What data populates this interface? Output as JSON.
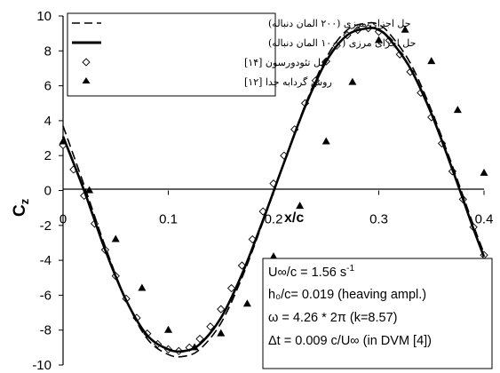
{
  "chart_data": {
    "type": "line",
    "xlabel": "x/c",
    "ylabel": "C",
    "ylabel_sub": "z",
    "xlim": [
      0,
      0.4
    ],
    "ylim": [
      -10,
      10
    ],
    "x_ticks": [
      0,
      0.1,
      0.2,
      0.3,
      0.4
    ],
    "x_tick_labels": [
      "0",
      "0.1",
      "0.2",
      "0.3",
      "0.4"
    ],
    "y_ticks": [
      -10,
      -8,
      -6,
      -4,
      -2,
      0,
      2,
      4,
      6,
      8,
      10
    ],
    "y_tick_labels": [
      "-10",
      "-8",
      "-6",
      "-4",
      "-2",
      "0",
      "2",
      "4",
      "6",
      "8",
      "10"
    ],
    "grid": false,
    "legend_position": "top-left",
    "series": [
      {
        "name": "حل اجزای مرزی (۲۰۰ المان دنباله)",
        "style": "dashed",
        "color": "#000000",
        "x": [
          0,
          0.02,
          0.04,
          0.06,
          0.08,
          0.1,
          0.115,
          0.13,
          0.15,
          0.17,
          0.19,
          0.21,
          0.23,
          0.25,
          0.27,
          0.29,
          0.3,
          0.31,
          0.33,
          0.35,
          0.37,
          0.39,
          0.4
        ],
        "y": [
          3.7,
          0.3,
          -3.2,
          -6.3,
          -8.5,
          -9.4,
          -9.5,
          -9.1,
          -7.6,
          -5.0,
          -1.8,
          1.6,
          4.9,
          7.6,
          9.2,
          9.6,
          9.5,
          9.0,
          7.3,
          4.6,
          1.4,
          -2.0,
          -3.6
        ]
      },
      {
        "name": "حل اجزای مرزی (۱۰۰۰ المان دنباله)",
        "style": "solid",
        "color": "#000000",
        "x": [
          0,
          0.02,
          0.04,
          0.06,
          0.08,
          0.1,
          0.115,
          0.13,
          0.15,
          0.17,
          0.19,
          0.21,
          0.23,
          0.25,
          0.27,
          0.29,
          0.3,
          0.31,
          0.33,
          0.35,
          0.37,
          0.39,
          0.4
        ],
        "y": [
          3.1,
          0.0,
          -3.4,
          -6.3,
          -8.3,
          -9.1,
          -9.2,
          -8.8,
          -7.3,
          -4.8,
          -1.7,
          1.6,
          4.8,
          7.4,
          8.9,
          9.3,
          9.2,
          8.7,
          7.0,
          4.4,
          1.2,
          -2.2,
          -3.8
        ]
      },
      {
        "name": "حل تئودورسون [۱۴]",
        "style": "marker",
        "marker": "diamond",
        "color": "#000000",
        "x": [
          0,
          0.01,
          0.02,
          0.03,
          0.04,
          0.05,
          0.06,
          0.07,
          0.08,
          0.09,
          0.1,
          0.11,
          0.12,
          0.13,
          0.14,
          0.15,
          0.16,
          0.17,
          0.18,
          0.19,
          0.2,
          0.21,
          0.22,
          0.23,
          0.24,
          0.25,
          0.26,
          0.27,
          0.28,
          0.29,
          0.3,
          0.31,
          0.32,
          0.33,
          0.34,
          0.35,
          0.36,
          0.37,
          0.38,
          0.39,
          0.4
        ],
        "y": [
          2.6,
          1.2,
          -0.3,
          -1.9,
          -3.4,
          -4.9,
          -6.2,
          -7.3,
          -8.2,
          -8.8,
          -9.1,
          -9.2,
          -9.0,
          -8.5,
          -7.8,
          -6.8,
          -5.6,
          -4.3,
          -2.8,
          -1.2,
          0.4,
          2.0,
          3.5,
          5.0,
          6.3,
          7.4,
          8.3,
          8.9,
          9.2,
          9.3,
          9.1,
          8.6,
          7.8,
          6.8,
          5.6,
          4.2,
          2.7,
          1.1,
          -0.5,
          -2.1,
          -3.7
        ]
      },
      {
        "name": "روش گردابه جدا [۱۲]",
        "style": "marker",
        "marker": "triangle",
        "color": "#000000",
        "x": [
          0,
          0.025,
          0.05,
          0.075,
          0.1,
          0.125,
          0.15,
          0.175,
          0.2,
          0.225,
          0.25,
          0.275,
          0.3,
          0.325,
          0.35,
          0.375,
          0.4
        ],
        "y": [
          2.8,
          0.0,
          -2.8,
          -5.6,
          -8.0,
          -9.0,
          -8.2,
          -6.5,
          -3.8,
          -0.9,
          2.8,
          6.2,
          8.6,
          9.2,
          7.4,
          4.6,
          1.0
        ]
      }
    ]
  },
  "info_box": {
    "line1": "U∞/c = 1.56 s",
    "line1_sup": "-1",
    "line2": "h₀/c= 0.019 (heaving ampl.)",
    "line3": "ω = 4.26 * 2π (k=8.57)",
    "line4": "Δt = 0.009 c/U∞ (in DVM [4])"
  }
}
